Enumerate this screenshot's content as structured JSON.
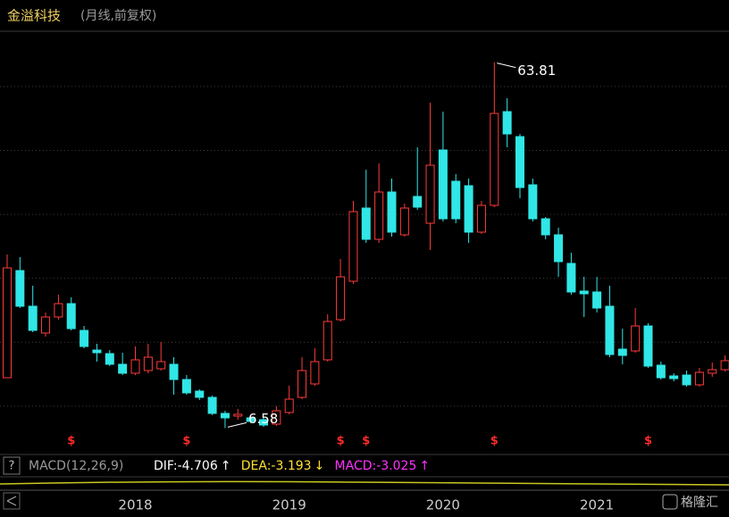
{
  "chart_data": {
    "type": "candlestick",
    "title": "金溢科技",
    "subtitle": "(月线,前复权)",
    "categories": [
      null,
      null,
      null,
      null,
      null,
      null,
      null,
      null,
      null,
      null,
      "2018",
      null,
      null,
      null,
      null,
      null,
      null,
      null,
      null,
      null,
      null,
      null,
      "2019",
      null,
      null,
      null,
      null,
      null,
      null,
      null,
      null,
      null,
      null,
      null,
      "2020",
      null,
      null,
      null,
      null,
      null,
      null,
      null,
      null,
      null,
      null,
      null,
      "2021",
      null,
      null,
      null,
      null,
      null,
      null,
      null,
      null,
      null,
      null
    ],
    "open": [
      14.45,
      31.21,
      25.63,
      21.44,
      23.95,
      26.04,
      21.85,
      18.78,
      18.22,
      16.55,
      15.15,
      15.57,
      15.85,
      16.55,
      14.17,
      12.36,
      11.38,
      8.87,
      8.45,
      8.17,
      7.89,
      7.19,
      9.01,
      11.38,
      13.48,
      17.25,
      23.53,
      29.54,
      40.99,
      36.1,
      43.5,
      36.8,
      42.8,
      38.61,
      50.07,
      45.18,
      44.48,
      37.22,
      41.41,
      56.07,
      52.16,
      44.62,
      39.31,
      36.8,
      32.33,
      28.0,
      27.86,
      25.63,
      18.92,
      18.64,
      22.55,
      16.41,
      14.73,
      14.87,
      13.34,
      15.15,
      15.71
    ],
    "high": [
      33.73,
      33.31,
      28.84,
      24.65,
      27.44,
      27.02,
      22.55,
      19.76,
      18.78,
      18.36,
      19.34,
      19.76,
      20.04,
      17.66,
      14.87,
      12.64,
      11.66,
      9.28,
      9.56,
      8.59,
      8.17,
      9.98,
      13.2,
      17.66,
      19.06,
      24.37,
      33.03,
      42.11,
      46.99,
      47.97,
      45.6,
      41.69,
      50.49,
      57.47,
      56.07,
      46.3,
      45.6,
      42.11,
      63.81,
      58.17,
      52.58,
      45.6,
      39.59,
      37.92,
      34.01,
      30.23,
      30.23,
      28.84,
      22.13,
      25.35,
      22.97,
      16.97,
      15.15,
      15.57,
      15.99,
      16.83,
      17.94
    ],
    "low": [
      14.45,
      25.35,
      21.58,
      20.88,
      23.53,
      21.85,
      19.06,
      16.97,
      16.27,
      14.87,
      14.87,
      15.15,
      15.57,
      11.8,
      11.8,
      10.96,
      8.59,
      6.58,
      7.89,
      7.33,
      6.77,
      6.91,
      8.73,
      11.1,
      13.2,
      16.97,
      23.25,
      29.12,
      35.54,
      35.54,
      36.52,
      36.52,
      40.71,
      34.42,
      38.89,
      38.61,
      35.54,
      36.94,
      41.13,
      50.49,
      42.53,
      38.89,
      36.1,
      30.23,
      27.44,
      23.95,
      24.65,
      17.66,
      16.55,
      18.36,
      15.99,
      14.17,
      13.89,
      13.06,
      13.06,
      14.59,
      15.43
    ],
    "close": [
      31.63,
      25.63,
      21.85,
      23.95,
      26.04,
      22.13,
      19.34,
      18.36,
      16.55,
      15.15,
      17.25,
      17.66,
      16.97,
      14.17,
      12.08,
      11.38,
      8.87,
      8.17,
      8.73,
      7.61,
      7.05,
      9.28,
      11.1,
      15.57,
      16.97,
      23.25,
      30.23,
      40.43,
      36.1,
      43.5,
      37.22,
      40.99,
      41.13,
      47.69,
      39.31,
      39.31,
      37.22,
      41.41,
      55.79,
      52.58,
      44.2,
      39.31,
      36.8,
      32.61,
      27.86,
      27.58,
      25.35,
      18.08,
      17.94,
      22.55,
      16.27,
      14.45,
      14.31,
      13.34,
      15.29,
      15.71,
      17.11
    ],
    "up_color": "#ff3b3b",
    "down_color": "#30e6e6",
    "markers": [
      null,
      null,
      null,
      null,
      null,
      "$",
      null,
      null,
      null,
      null,
      null,
      null,
      null,
      null,
      "$",
      null,
      null,
      null,
      null,
      null,
      null,
      null,
      null,
      null,
      null,
      null,
      "$",
      null,
      "$",
      null,
      null,
      null,
      null,
      null,
      null,
      null,
      null,
      null,
      "$",
      null,
      null,
      null,
      null,
      null,
      null,
      null,
      null,
      null,
      null,
      null,
      "$",
      null,
      null,
      null,
      null,
      null,
      null
    ],
    "marker_color": "#ff2a2a",
    "annotations": [
      {
        "label": "63.81",
        "value": 63.81
      },
      {
        "label": "6.58",
        "value": 6.58
      }
    ],
    "ylim": [
      3,
      69.34
    ],
    "yticks": [
      10,
      20,
      30,
      40,
      50,
      60
    ],
    "grid": true,
    "indicator": {
      "help": "?",
      "name": "MACD(12,26,9)",
      "items": [
        {
          "label": "DIF:-4.706",
          "arrow": "↑",
          "color": "#ffffff"
        },
        {
          "label": "DEA:-3.193",
          "arrow": "↓",
          "color": "#ffe033"
        },
        {
          "label": "MACD:-3.025",
          "arrow": "↑",
          "color": "#ff33ff"
        }
      ]
    },
    "brand": "格隆汇"
  }
}
